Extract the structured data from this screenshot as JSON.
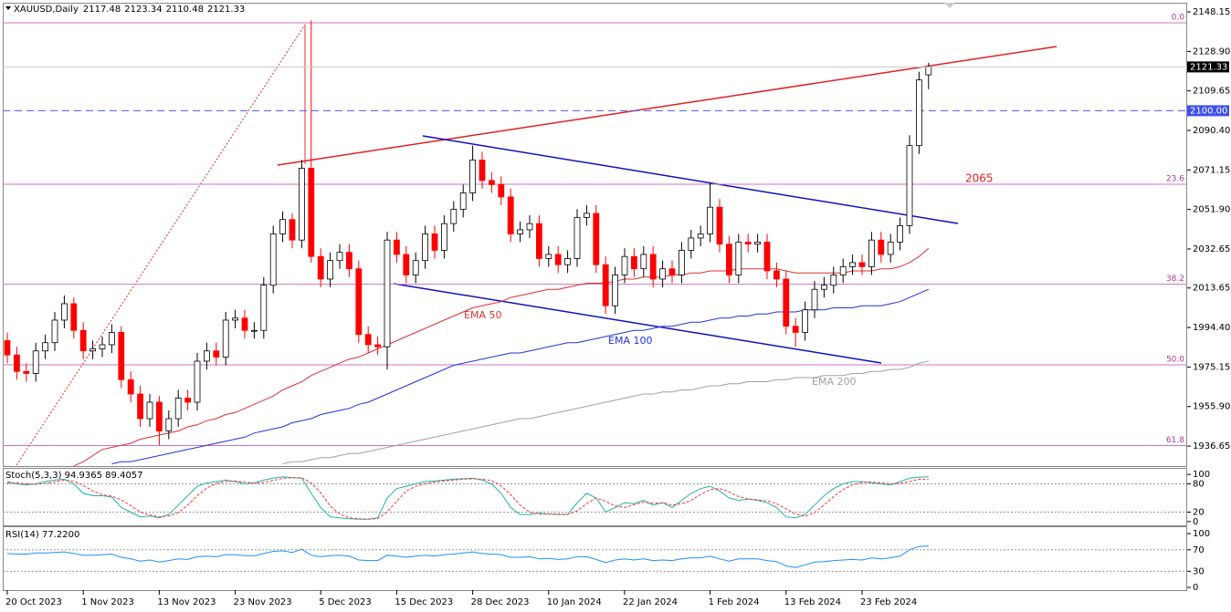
{
  "chart_data": [
    {
      "type": "candlestick",
      "title": "XAUUSD,Daily",
      "x": [
        "20 Oct 2023",
        null,
        null,
        null,
        null,
        null,
        null,
        null,
        "1 Nov 2023",
        null,
        null,
        null,
        null,
        null,
        null,
        null,
        "13 Nov 2023",
        null,
        null,
        null,
        null,
        null,
        null,
        null,
        "23 Nov 2023",
        null,
        null,
        null,
        null,
        null,
        null,
        null,
        null,
        "5 Dec 2023",
        null,
        null,
        null,
        null,
        null,
        null,
        null,
        "15 Dec 2023",
        null,
        null,
        null,
        null,
        null,
        null,
        null,
        "28 Dec 2023",
        null,
        null,
        null,
        null,
        null,
        null,
        null,
        "10 Jan 2024",
        null,
        null,
        null,
        null,
        null,
        null,
        null,
        "22 Jan 2024",
        null,
        null,
        null,
        null,
        null,
        null,
        null,
        null,
        "1 Feb 2024",
        null,
        null,
        null,
        null,
        null,
        null,
        null,
        "13 Feb 2024",
        null,
        null,
        null,
        null,
        null,
        null,
        null,
        "23 Feb 2024",
        null,
        null,
        null,
        null,
        null,
        null,
        null
      ],
      "open": [
        1988,
        1981,
        1973,
        1972,
        1983,
        1987,
        1998,
        2006,
        1993,
        1983,
        1984,
        1986,
        1992,
        1969,
        1962,
        1950,
        1958,
        1944,
        1950,
        1960,
        1958,
        1978,
        1983,
        1980,
        1998,
        1999,
        1993,
        1993,
        2015,
        2040,
        2047,
        2037,
        2072,
        2029,
        2018,
        2027,
        2031,
        2023,
        1991,
        1986,
        1985,
        2037,
        2030,
        2020,
        2027,
        2040,
        2032,
        2045,
        2052,
        2060,
        2076,
        2066,
        2064,
        2058,
        2040,
        2042,
        2045,
        2028,
        2030,
        2025,
        2028,
        2048,
        2050,
        2025,
        2005,
        2020,
        2029,
        2023,
        2030,
        2018,
        2023,
        2020,
        2032,
        2038,
        2040,
        2053,
        2035,
        2020,
        2036,
        2035,
        2036,
        2022,
        2018,
        1995,
        1992,
        2003,
        2013,
        2015,
        2020,
        2024,
        2026,
        2024,
        2037,
        2030,
        2036,
        2044,
        2083,
        2117.48
      ],
      "high": [
        1992,
        1985,
        1977,
        1987,
        1991,
        2002,
        2010,
        2009,
        1997,
        1988,
        1990,
        1996,
        1995,
        1973,
        1966,
        1962,
        1961,
        1954,
        1964,
        1964,
        1982,
        1987,
        1987,
        2002,
        2003,
        2003,
        1997,
        2019,
        2044,
        2051,
        2050,
        2076,
        2144,
        2033,
        2031,
        2035,
        2035,
        2027,
        1995,
        1990,
        2041,
        2041,
        2034,
        2031,
        2044,
        2044,
        2049,
        2056,
        2064,
        2083,
        2080,
        2070,
        2068,
        2062,
        2046,
        2049,
        2049,
        2034,
        2034,
        2032,
        2052,
        2054,
        2054,
        2029,
        2024,
        2033,
        2033,
        2034,
        2034,
        2027,
        2027,
        2036,
        2042,
        2044,
        2065,
        2057,
        2039,
        2040,
        2040,
        2040,
        2040,
        2026,
        2022,
        1999,
        2007,
        2017,
        2019,
        2024,
        2028,
        2030,
        2030,
        2041,
        2041,
        2040,
        2048,
        2088,
        2119,
        2123.34
      ],
      "low": [
        1977,
        1969,
        1968,
        1968,
        1979,
        1983,
        1994,
        1989,
        1979,
        1979,
        1980,
        1982,
        1965,
        1958,
        1946,
        1946,
        1937,
        1940,
        1946,
        1954,
        1954,
        1974,
        1976,
        1976,
        1994,
        1989,
        1989,
        1989,
        2011,
        2036,
        2033,
        2033,
        2026,
        2014,
        2014,
        2023,
        2019,
        1987,
        1982,
        1981,
        1974,
        2026,
        2016,
        2016,
        2023,
        2028,
        2028,
        2041,
        2048,
        2056,
        2062,
        2060,
        2054,
        2036,
        2036,
        2038,
        2024,
        2024,
        2021,
        2021,
        2024,
        2044,
        2021,
        2001,
        2001,
        2016,
        2019,
        2019,
        2014,
        2014,
        2016,
        2016,
        2028,
        2034,
        2036,
        2031,
        2016,
        2016,
        2031,
        2031,
        2018,
        2014,
        1991,
        1985,
        1988,
        1999,
        2009,
        2011,
        2016,
        2020,
        2020,
        2020,
        2026,
        2026,
        2032,
        2040,
        2079,
        2110.48
      ],
      "close": [
        1981,
        1973,
        1972,
        1983,
        1987,
        1998,
        2006,
        1993,
        1983,
        1984,
        1986,
        1992,
        1969,
        1962,
        1950,
        1958,
        1944,
        1950,
        1960,
        1958,
        1978,
        1983,
        1980,
        1998,
        1999,
        1993,
        1993,
        2015,
        2040,
        2047,
        2037,
        2072,
        2029,
        2018,
        2027,
        2031,
        2023,
        1991,
        1986,
        1985,
        2037,
        2030,
        2020,
        2027,
        2040,
        2032,
        2045,
        2052,
        2060,
        2076,
        2066,
        2064,
        2058,
        2040,
        2042,
        2045,
        2028,
        2030,
        2025,
        2028,
        2048,
        2050,
        2025,
        2005,
        2020,
        2029,
        2023,
        2030,
        2018,
        2023,
        2020,
        2032,
        2038,
        2040,
        2053,
        2035,
        2020,
        2036,
        2035,
        2036,
        2022,
        2018,
        1995,
        1992,
        2003,
        2013,
        2015,
        2020,
        2024,
        2026,
        2024,
        2037,
        2030,
        2036,
        2044,
        2083,
        2115,
        2121.33
      ],
      "up_color": "#ffffff",
      "down_color": "#ff0000",
      "lines": [
        {
          "name": "EMA 50",
          "color": "#e03030",
          "values": [
            null,
            null,
            null,
            null,
            null,
            null,
            null,
            1927,
            1929,
            1932,
            1935,
            1936,
            1937,
            1938,
            1940,
            1941,
            1942,
            1943,
            1944,
            1946,
            1947,
            1949,
            1950,
            1952,
            1953,
            1955,
            1957,
            1959,
            1961,
            1964,
            1966,
            1968,
            1971,
            1973,
            1975,
            1977,
            1979,
            1980,
            1982,
            1984,
            1986,
            1988,
            1990,
            1992,
            1994,
            1996,
            1998,
            2000,
            2002,
            2004,
            2005,
            2006,
            2007,
            2009,
            2010,
            2011,
            2012,
            2013,
            2013,
            2014,
            2015,
            2016,
            2016,
            2016,
            2017,
            2018,
            2018,
            2019,
            2019,
            2019,
            2020,
            2020,
            2021,
            2021,
            2022,
            2022,
            2022,
            2023,
            2023,
            2023,
            2023,
            2023,
            2022,
            2021,
            2021,
            2021,
            2021,
            2021,
            2021,
            2022,
            2022,
            2022,
            2023,
            2023,
            2024,
            2026,
            2029,
            2033
          ]
        },
        {
          "name": "EMA 100",
          "color": "#2233dd",
          "values": [
            null,
            null,
            null,
            null,
            null,
            null,
            null,
            null,
            null,
            null,
            null,
            1928,
            1929,
            1929,
            1930,
            1931,
            1932,
            1933,
            1934,
            1935,
            1936,
            1937,
            1938,
            1939,
            1940,
            1941,
            1943,
            1944,
            1945,
            1946,
            1948,
            1949,
            1950,
            1952,
            1953,
            1954,
            1955,
            1957,
            1958,
            1960,
            1962,
            1964,
            1966,
            1968,
            1970,
            1972,
            1974,
            1976,
            1977,
            1978,
            1979,
            1980,
            1981,
            1982,
            1982,
            1983,
            1984,
            1985,
            1986,
            1987,
            1987,
            1988,
            1989,
            1990,
            1991,
            1992,
            1993,
            1993,
            1994,
            1995,
            1995,
            1996,
            1997,
            1997,
            1998,
            1999,
            1999,
            2000,
            2000,
            2001,
            2001,
            2002,
            2002,
            2002,
            2003,
            2003,
            2003,
            2004,
            2004,
            2004,
            2005,
            2005,
            2005,
            2006,
            2007,
            2009,
            2011,
            2013
          ]
        },
        {
          "name": "EMA 200",
          "color": "#a0a0a0",
          "values": [
            null,
            null,
            null,
            null,
            null,
            null,
            null,
            null,
            null,
            null,
            null,
            null,
            null,
            null,
            null,
            null,
            null,
            null,
            null,
            null,
            null,
            null,
            null,
            null,
            null,
            null,
            null,
            null,
            null,
            1928,
            1929,
            1929,
            1930,
            1931,
            1931,
            1932,
            1933,
            1933,
            1934,
            1935,
            1936,
            1937,
            1938,
            1939,
            1940,
            1941,
            1942,
            1943,
            1944,
            1945,
            1946,
            1947,
            1948,
            1949,
            1950,
            1950,
            1951,
            1952,
            1953,
            1954,
            1955,
            1956,
            1957,
            1958,
            1959,
            1960,
            1961,
            1962,
            1962,
            1963,
            1963,
            1964,
            1964,
            1965,
            1966,
            1966,
            1967,
            1967,
            1968,
            1968,
            1968,
            1969,
            1969,
            1970,
            1970,
            1970,
            1971,
            1971,
            1971,
            1972,
            1972,
            1973,
            1973,
            1974,
            1974,
            1975,
            1977,
            1978
          ]
        }
      ],
      "ylim": [
        1926.9,
        2152.6
      ],
      "yticks": [
        2148.15,
        {
          "value": 2128.9,
          "label": "2128.90"
        },
        2109.65,
        {
          "value": 2090.4,
          "label": "2090.40"
        },
        2071.15,
        {
          "value": 2051.9,
          "label": "2051.90"
        },
        2032.65,
        2013.65,
        {
          "value": 1994.4,
          "label": "1994.40"
        },
        1975.15,
        {
          "value": 1955.9,
          "label": "1955.90"
        },
        1936.65
      ],
      "fib_levels": [
        {
          "value": 2142.8,
          "label": "0.0"
        },
        {
          "value": 2064.2,
          "label": "23.6"
        },
        {
          "value": 2015.5,
          "label": "38.2"
        },
        {
          "value": 1976.2,
          "label": "50.0"
        },
        {
          "value": 1936.9,
          "label": "61.8"
        }
      ],
      "hline": {
        "value": 2100,
        "label": "2100.00"
      },
      "annotations": [
        "2065"
      ],
      "grid": false
    },
    {
      "type": "line",
      "title": "Stoch(5,3,3) 94.9365 89.4057",
      "series": [
        {
          "color": "#20b2aa",
          "dash": false,
          "values": [
            85,
            80,
            78,
            80,
            85,
            88,
            90,
            80,
            60,
            55,
            55,
            52,
            30,
            20,
            10,
            12,
            8,
            15,
            35,
            55,
            75,
            82,
            85,
            88,
            85,
            80,
            82,
            88,
            92,
            95,
            93,
            92,
            60,
            30,
            10,
            8,
            6,
            5,
            5,
            8,
            50,
            70,
            75,
            80,
            85,
            86,
            88,
            90,
            91,
            92,
            88,
            80,
            60,
            30,
            15,
            15,
            18,
            16,
            15,
            15,
            40,
            60,
            50,
            20,
            30,
            40,
            38,
            45,
            35,
            40,
            30,
            45,
            60,
            70,
            75,
            65,
            50,
            45,
            48,
            45,
            40,
            30,
            10,
            8,
            15,
            35,
            55,
            70,
            80,
            85,
            85,
            82,
            80,
            78,
            85,
            92,
            94,
            94.9365
          ]
        },
        {
          "color": "#ff3030",
          "dash": true,
          "values": [
            82,
            82,
            80,
            79,
            81,
            84,
            88,
            86,
            77,
            65,
            57,
            54,
            46,
            34,
            20,
            14,
            10,
            12,
            19,
            35,
            55,
            71,
            81,
            85,
            86,
            84,
            82,
            83,
            87,
            92,
            93,
            93,
            82,
            61,
            33,
            16,
            8,
            6,
            5,
            6,
            21,
            43,
            65,
            75,
            80,
            84,
            86,
            88,
            90,
            91,
            90,
            87,
            76,
            57,
            35,
            20,
            16,
            16,
            16,
            15,
            23,
            38,
            50,
            43,
            33,
            30,
            36,
            41,
            39,
            40,
            35,
            38,
            45,
            58,
            68,
            70,
            63,
            53,
            48,
            46,
            44,
            38,
            27,
            16,
            11,
            19,
            35,
            53,
            68,
            78,
            83,
            84,
            82,
            80,
            81,
            85,
            90,
            89.4057
          ]
        }
      ],
      "ylim": [
        -8,
        112
      ],
      "yticks": [
        0,
        20,
        80,
        100
      ],
      "levels": [
        20,
        80
      ]
    },
    {
      "type": "line",
      "title": "RSI(14) 77.2200",
      "series": [
        {
          "color": "#1e90ff",
          "dash": false,
          "values": [
            63,
            62,
            62,
            64,
            64,
            65,
            66,
            63,
            60,
            60,
            61,
            62,
            56,
            53,
            49,
            51,
            47,
            50,
            53,
            52,
            57,
            58,
            57,
            61,
            61,
            59,
            59,
            63,
            67,
            68,
            65,
            71,
            60,
            57,
            59,
            60,
            58,
            51,
            50,
            50,
            60,
            58,
            56,
            58,
            60,
            58,
            61,
            62,
            64,
            66,
            63,
            62,
            61,
            56,
            56,
            57,
            53,
            54,
            52,
            53,
            57,
            57,
            52,
            46,
            51,
            53,
            51,
            53,
            50,
            51,
            50,
            53,
            55,
            55,
            58,
            53,
            49,
            53,
            53,
            53,
            50,
            48,
            40,
            37,
            42,
            47,
            48,
            50,
            51,
            52,
            51,
            55,
            53,
            55,
            58,
            70,
            76,
            77.22
          ]
        }
      ],
      "ylim": [
        -5,
        112
      ],
      "yticks": [
        0,
        30,
        70,
        100
      ],
      "levels": [
        30,
        70
      ]
    }
  ]
}
